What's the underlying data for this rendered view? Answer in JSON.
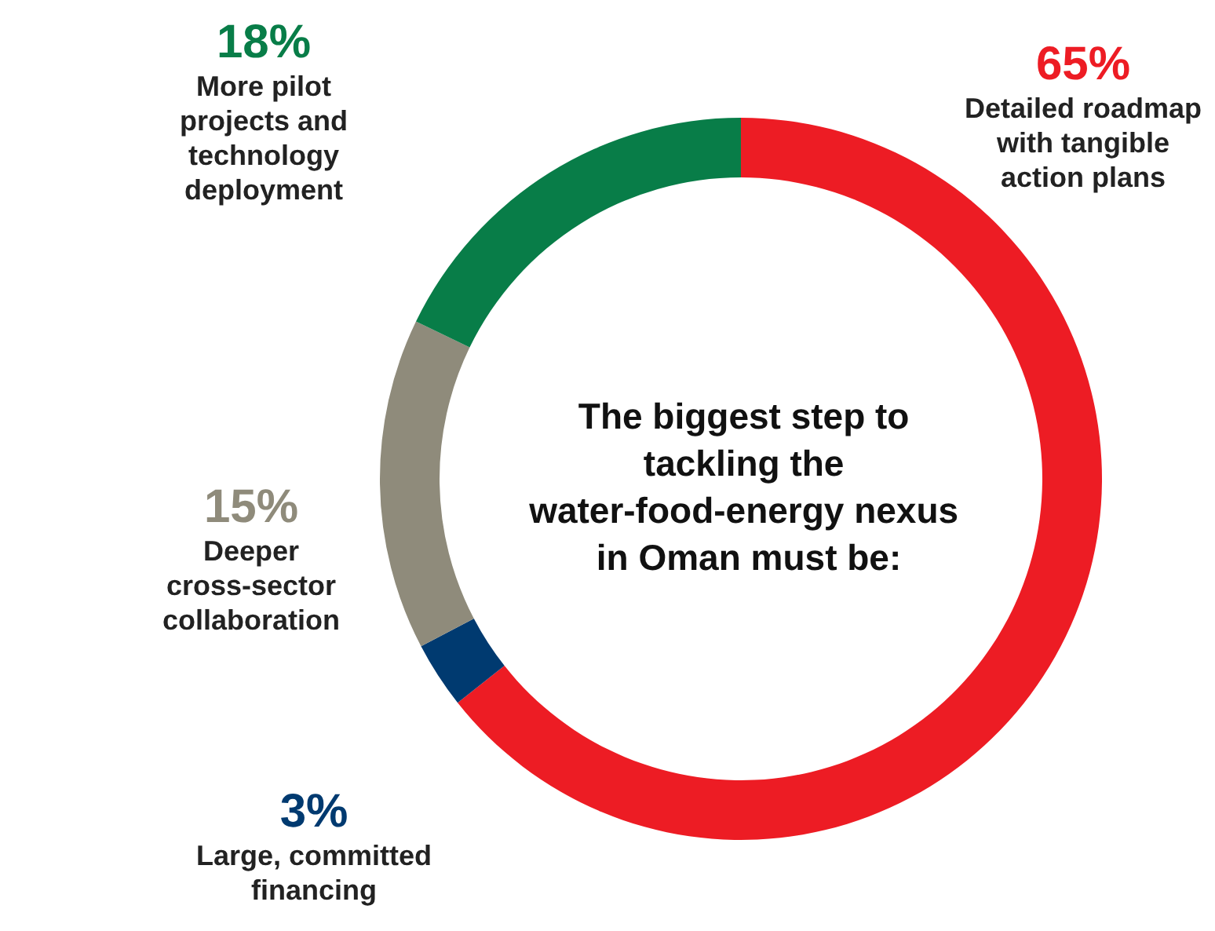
{
  "chart_data": {
    "type": "donut",
    "title": "The biggest step to tackling the water-food-energy nexus in Oman must be:",
    "categories": [
      "Detailed roadmap with tangible action plans",
      "Large, committed financing",
      "Deeper cross-sector collaboration",
      "More pilot projects and technology deployment"
    ],
    "values": [
      65,
      3,
      15,
      18
    ],
    "value_labels": [
      "65%",
      "3%",
      "15%",
      "18%"
    ],
    "colors": [
      "#ed1c24",
      "#003a70",
      "#8f8b7b",
      "#087d48"
    ],
    "legend": false
  }
}
